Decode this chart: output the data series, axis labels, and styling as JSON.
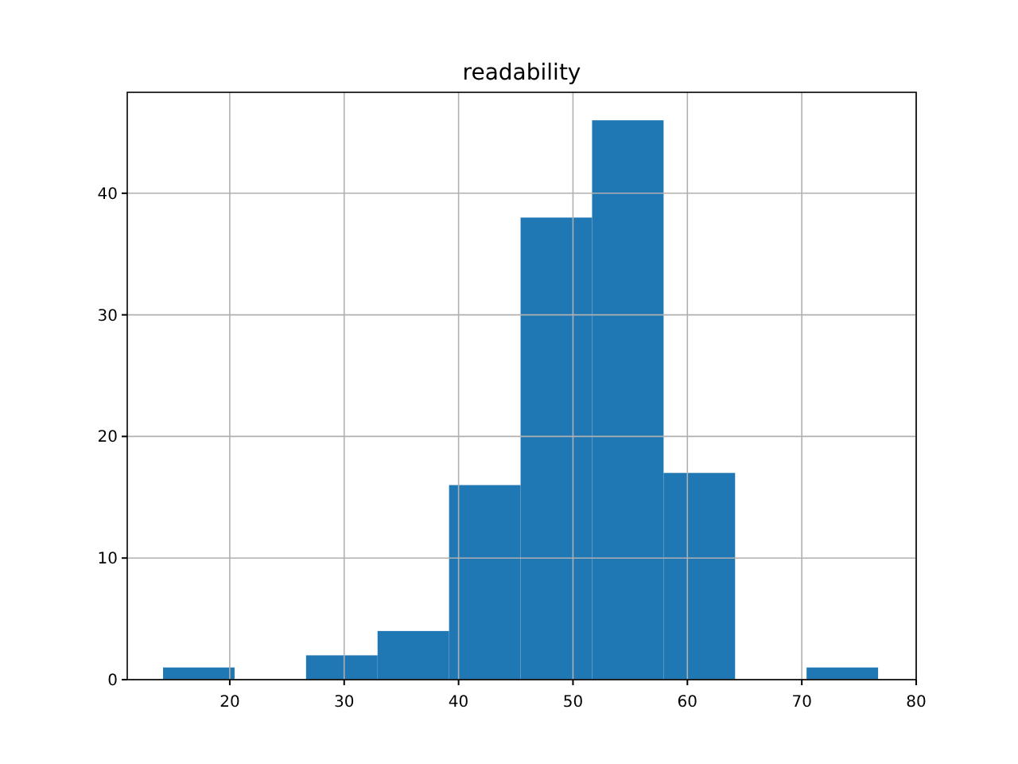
{
  "chart_data": {
    "type": "histogram",
    "title": "readability",
    "bins": [
      14.17,
      20.42,
      26.67,
      32.92,
      39.17,
      45.42,
      51.67,
      57.92,
      64.17,
      70.42,
      76.67
    ],
    "values": [
      1,
      0,
      2,
      4,
      16,
      38,
      46,
      17,
      0,
      1
    ],
    "color": "#1f77b4",
    "xlim": [
      11.04,
      80
    ],
    "xticks": [
      20,
      30,
      40,
      50,
      60,
      70,
      80
    ],
    "ylim": [
      0,
      48.3
    ],
    "yticks": [
      0,
      10,
      20,
      30,
      40
    ],
    "grid": true
  }
}
